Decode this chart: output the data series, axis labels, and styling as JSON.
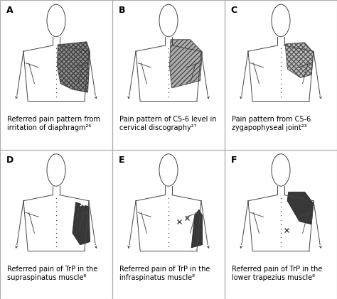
{
  "bg_color": "#ffffff",
  "border_color": "#aaaaaa",
  "panel_labels": [
    "A",
    "B",
    "C",
    "D",
    "E",
    "F"
  ],
  "captions": [
    "Referred pain pattern from\nirritation of diaphragm²⁶",
    "Pain pattern of C5-6 level in\ncervical discography²⁷",
    "Pain pattern from C5-6\nzygapophyseal joint²³",
    "Referred pain of TrP in the\nsupraspinatus muscle⁸",
    "Referred pain of TrP in the\ninfraspinatus muscle⁸",
    "Referred pain of TrP in the\nlower trapezius muscle⁸"
  ],
  "line_color": "#444444",
  "caption_fontsize": 7.0,
  "label_fontsize": 9
}
